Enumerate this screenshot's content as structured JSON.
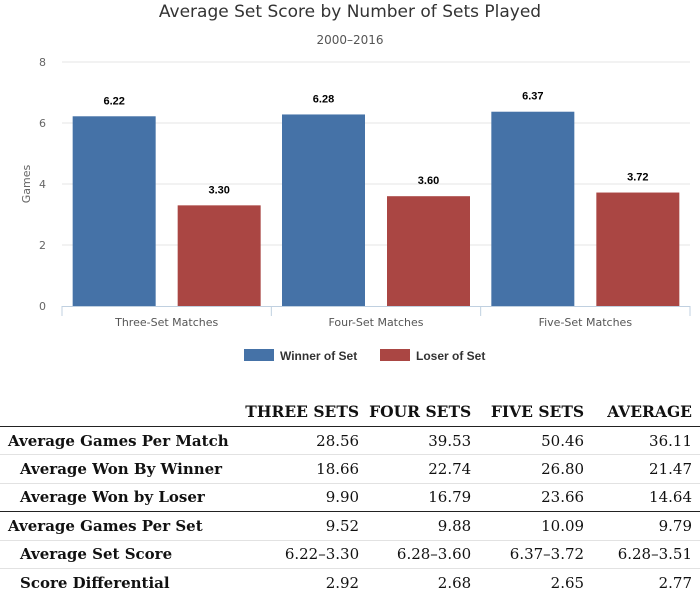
{
  "chart_data": {
    "type": "bar",
    "title": "Average Set Score by Number of Sets Played",
    "subtitle": "2000–2016",
    "ylabel": "Games",
    "xlabel": "",
    "ylim": [
      0,
      8
    ],
    "yticks": [
      0,
      2,
      4,
      6,
      8
    ],
    "grid": true,
    "legend_position": "bottom-center",
    "categories": [
      "Three-Set Matches",
      "Four-Set Matches",
      "Five-Set Matches"
    ],
    "series": [
      {
        "name": "Winner of Set",
        "color": "#4572a7",
        "values": [
          6.22,
          6.28,
          6.37
        ],
        "labels": [
          "6.22",
          "6.28",
          "6.37"
        ]
      },
      {
        "name": "Loser of Set",
        "color": "#aa4643",
        "values": [
          3.3,
          3.6,
          3.72
        ],
        "labels": [
          "3.30",
          "3.60",
          "3.72"
        ]
      }
    ]
  },
  "table": {
    "columns": [
      "THREE SETS",
      "FOUR SETS",
      "FIVE SETS",
      "AVERAGE"
    ],
    "rows": [
      {
        "label": "Average Games Per Match",
        "level": 0,
        "values": [
          "28.56",
          "39.53",
          "50.46",
          "36.11"
        ]
      },
      {
        "label": "Average Won By Winner",
        "level": 1,
        "values": [
          "18.66",
          "22.74",
          "26.80",
          "21.47"
        ]
      },
      {
        "label": "Average Won by Loser",
        "level": 1,
        "values": [
          "9.90",
          "16.79",
          "23.66",
          "14.64"
        ]
      },
      {
        "label": "Average Games Per Set",
        "level": 0,
        "values": [
          "9.52",
          "9.88",
          "10.09",
          "9.79"
        ]
      },
      {
        "label": "Average Set Score",
        "level": 1,
        "values": [
          "6.22–3.30",
          "6.28–3.60",
          "6.37–3.72",
          "6.28–3.51"
        ]
      },
      {
        "label": "Score Differential",
        "level": 1,
        "values": [
          "2.92",
          "2.68",
          "2.65",
          "2.77"
        ]
      }
    ]
  }
}
